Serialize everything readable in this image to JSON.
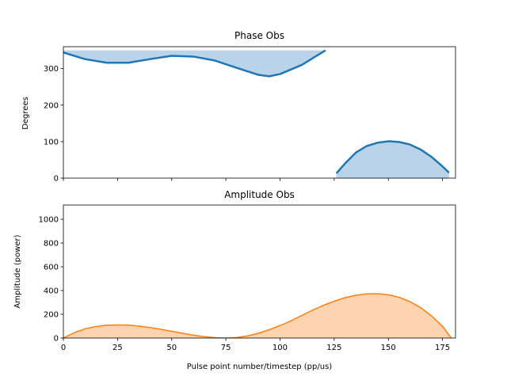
{
  "chart_data": [
    {
      "type": "area",
      "title": "Phase Obs",
      "xlabel": "",
      "ylabel": "Degrees",
      "xlim": [
        0,
        181
      ],
      "ylim": [
        0,
        360
      ],
      "xticks": [
        0,
        25,
        50,
        75,
        100,
        125,
        150,
        175
      ],
      "yticks": [
        0,
        100,
        200,
        300
      ],
      "ytick_labels": [
        "0",
        "100",
        "200",
        "300"
      ],
      "fill_to": 350,
      "color": "#1f77b4",
      "fill_color": "#b8d3ea",
      "segments": [
        {
          "points": [
            [
              0,
              344
            ],
            [
              10,
              326
            ],
            [
              20,
              316
            ],
            [
              30,
              316
            ],
            [
              40,
              326
            ],
            [
              50,
              335
            ],
            [
              60,
              333
            ],
            [
              70,
              322
            ],
            [
              80,
              302
            ],
            [
              90,
              283
            ],
            [
              95,
              279
            ],
            [
              100,
              285
            ],
            [
              110,
              310
            ],
            [
              121,
              350
            ]
          ]
        },
        {
          "fill_to": 0,
          "points": [
            [
              126,
              13
            ],
            [
              130,
              40
            ],
            [
              135,
              70
            ],
            [
              140,
              88
            ],
            [
              145,
              97
            ],
            [
              150,
              101
            ],
            [
              155,
              99
            ],
            [
              160,
              92
            ],
            [
              165,
              78
            ],
            [
              170,
              58
            ],
            [
              175,
              32
            ],
            [
              178,
              15
            ]
          ]
        }
      ]
    },
    {
      "type": "area",
      "title": "Amplitude Obs",
      "xlabel": "Pulse point number/timestep (pp/us)",
      "ylabel": "Amplitude (power)",
      "xlim": [
        0,
        181
      ],
      "ylim": [
        0,
        1120
      ],
      "xticks": [
        0,
        25,
        50,
        75,
        100,
        125,
        150,
        175
      ],
      "xtick_labels": [
        "0",
        "25",
        "50",
        "75",
        "100",
        "125",
        "150",
        "175"
      ],
      "yticks": [
        0,
        200,
        400,
        600,
        800,
        1000
      ],
      "ytick_labels": [
        "0",
        "200",
        "400",
        "600",
        "800",
        "1000"
      ],
      "fill_to": 0,
      "color": "#ff7f0e",
      "fill_color": "#ffd3b0",
      "segments": [
        {
          "points": [
            [
              0,
              0
            ],
            [
              5,
              45
            ],
            [
              10,
              78
            ],
            [
              15,
              97
            ],
            [
              20,
              108
            ],
            [
              25,
              110
            ],
            [
              30,
              108
            ],
            [
              35,
              100
            ],
            [
              40,
              88
            ],
            [
              45,
              73
            ],
            [
              50,
              57
            ],
            [
              55,
              40
            ],
            [
              60,
              24
            ],
            [
              65,
              12
            ],
            [
              70,
              3
            ],
            [
              75,
              0
            ],
            [
              80,
              4
            ],
            [
              85,
              18
            ],
            [
              90,
              40
            ],
            [
              95,
              70
            ],
            [
              100,
              105
            ],
            [
              105,
              145
            ],
            [
              110,
              190
            ],
            [
              115,
              235
            ],
            [
              120,
              275
            ],
            [
              125,
              310
            ],
            [
              130,
              340
            ],
            [
              135,
              360
            ],
            [
              140,
              372
            ],
            [
              145,
              373
            ],
            [
              150,
              364
            ],
            [
              155,
              343
            ],
            [
              160,
              307
            ],
            [
              165,
              255
            ],
            [
              170,
              185
            ],
            [
              175,
              100
            ],
            [
              179,
              0
            ]
          ]
        }
      ]
    }
  ]
}
